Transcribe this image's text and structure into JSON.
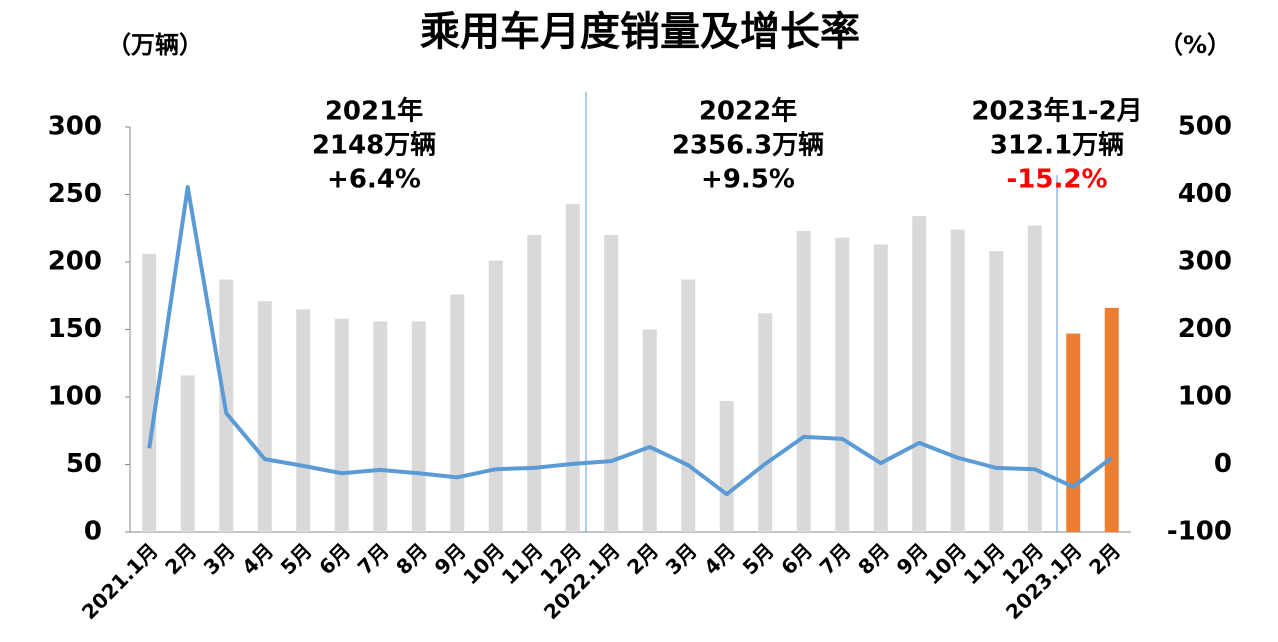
{
  "chart_data": {
    "type": "bar_line",
    "title": "乘用车月度销量及增长率",
    "y_label": "（万辆）",
    "y2_label": "（%）",
    "categories": [
      "2021.1月",
      "2月",
      "3月",
      "4月",
      "5月",
      "6月",
      "7月",
      "8月",
      "9月",
      "10月",
      "11月",
      "12月",
      "2022.1月",
      "2月",
      "3月",
      "4月",
      "5月",
      "6月",
      "7月",
      "8月",
      "9月",
      "10月",
      "11月",
      "12月",
      "2023.1月",
      "2月"
    ],
    "series": [
      {
        "kind": "bar",
        "values": [
          206,
          116,
          187,
          171,
          165,
          158,
          156,
          156,
          176,
          201,
          220,
          243,
          220,
          150,
          187,
          97,
          162,
          223,
          218,
          213,
          234,
          224,
          208,
          227,
          147,
          166
        ],
        "colors": [
          "#d9d9d9",
          "#d9d9d9",
          "#d9d9d9",
          "#d9d9d9",
          "#d9d9d9",
          "#d9d9d9",
          "#d9d9d9",
          "#d9d9d9",
          "#d9d9d9",
          "#d9d9d9",
          "#d9d9d9",
          "#d9d9d9",
          "#d9d9d9",
          "#d9d9d9",
          "#d9d9d9",
          "#d9d9d9",
          "#d9d9d9",
          "#d9d9d9",
          "#d9d9d9",
          "#d9d9d9",
          "#d9d9d9",
          "#d9d9d9",
          "#d9d9d9",
          "#d9d9d9",
          "#ed7d31",
          "#ed7d31"
        ]
      },
      {
        "kind": "line",
        "axis": "y2",
        "color": "#5b9bd5",
        "values": [
          24,
          411,
          76,
          8,
          -2,
          -13,
          -8,
          -13,
          -19,
          -7,
          -5,
          1,
          5,
          26,
          -1,
          -44,
          1,
          41,
          38,
          2,
          32,
          10,
          -5,
          -7,
          -33,
          10
        ]
      }
    ],
    "ylim": [
      0,
      300
    ],
    "yticks": [
      0,
      50,
      100,
      150,
      200,
      250,
      300
    ],
    "y2lim": [
      -100,
      500
    ],
    "y2ticks": [
      -100,
      0,
      100,
      200,
      300,
      400,
      500
    ],
    "annotations": [
      {
        "lines": [
          "2021年",
          "2148万辆",
          "+6.4%"
        ],
        "colors": [
          "#000000",
          "#000000",
          "#000000"
        ]
      },
      {
        "lines": [
          "2022年",
          "2356.3万辆",
          "+9.5%"
        ],
        "colors": [
          "#000000",
          "#000000",
          "#000000"
        ]
      },
      {
        "lines": [
          "2023年1-2月",
          "312.1万辆",
          "-15.2%"
        ],
        "colors": [
          "#000000",
          "#000000",
          "#ff0000"
        ]
      }
    ]
  }
}
